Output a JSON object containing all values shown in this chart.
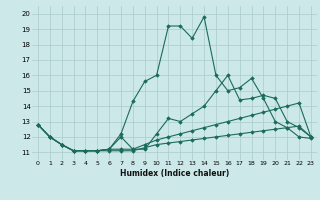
{
  "xlabel": "Humidex (Indice chaleur)",
  "xlim": [
    -0.5,
    23.5
  ],
  "ylim": [
    10.5,
    20.5
  ],
  "yticks": [
    11,
    12,
    13,
    14,
    15,
    16,
    17,
    18,
    19,
    20
  ],
  "xticks": [
    0,
    1,
    2,
    3,
    4,
    5,
    6,
    7,
    8,
    9,
    10,
    11,
    12,
    13,
    14,
    15,
    16,
    17,
    18,
    19,
    20,
    21,
    22,
    23
  ],
  "bg_color": "#cce8e8",
  "grid_color": "#aacccc",
  "line_color": "#1a6b5a",
  "series": {
    "s1_peak": [
      12.8,
      12.0,
      11.5,
      11.1,
      11.1,
      11.1,
      11.2,
      12.2,
      14.3,
      15.6,
      16.0,
      19.2,
      19.2,
      18.4,
      19.8,
      16.0,
      15.0,
      15.2,
      15.8,
      14.5,
      13.0,
      12.6,
      12.0,
      11.9
    ],
    "s2_mid": [
      12.8,
      12.0,
      11.5,
      11.1,
      11.1,
      11.1,
      11.2,
      12.0,
      11.2,
      11.2,
      12.2,
      13.2,
      13.0,
      13.5,
      14.0,
      15.0,
      16.0,
      14.4,
      14.5,
      14.7,
      14.5,
      13.0,
      12.6,
      12.0
    ],
    "s3_flat": [
      12.8,
      12.0,
      11.5,
      11.1,
      11.1,
      11.1,
      11.2,
      11.2,
      11.2,
      11.5,
      11.8,
      12.0,
      12.2,
      12.4,
      12.6,
      12.8,
      13.0,
      13.2,
      13.4,
      13.6,
      13.8,
      14.0,
      14.2,
      12.0
    ],
    "s4_low": [
      12.8,
      12.0,
      11.5,
      11.1,
      11.1,
      11.1,
      11.1,
      11.1,
      11.1,
      11.3,
      11.5,
      11.6,
      11.7,
      11.8,
      11.9,
      12.0,
      12.1,
      12.2,
      12.3,
      12.4,
      12.5,
      12.6,
      12.7,
      12.0
    ]
  }
}
